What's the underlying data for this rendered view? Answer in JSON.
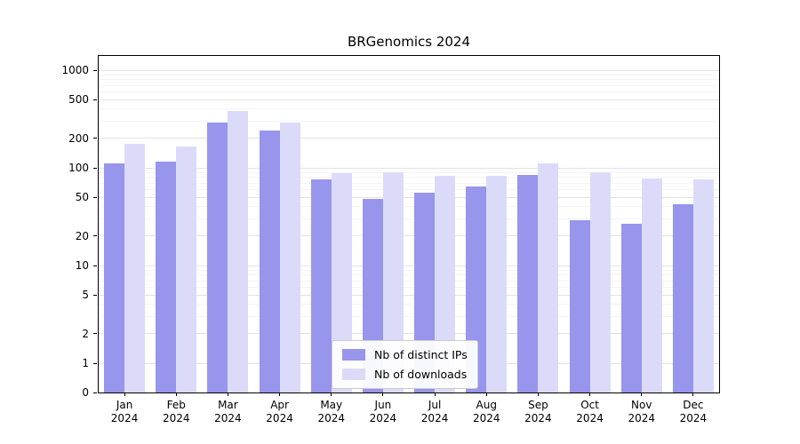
{
  "chart_data": {
    "type": "bar",
    "title": "BRGenomics 2024",
    "categories": [
      "Jan",
      "Feb",
      "Mar",
      "Apr",
      "May",
      "Jun",
      "Jul",
      "Aug",
      "Sep",
      "Oct",
      "Nov",
      "Dec"
    ],
    "category_year": "2024",
    "series": [
      {
        "name": "Nb of distinct IPs",
        "color": "#9795ec",
        "values": [
          110,
          115,
          290,
          240,
          76,
          48,
          56,
          65,
          85,
          29,
          27,
          42
        ]
      },
      {
        "name": "Nb of downloads",
        "color": "#dbdbf9",
        "values": [
          175,
          165,
          380,
          290,
          89,
          90,
          83,
          82,
          112,
          90,
          78,
          76
        ]
      }
    ],
    "yscale": "symlog",
    "xlabel": "",
    "ylabel": "",
    "yticks": [
      0,
      1,
      2,
      5,
      10,
      20,
      50,
      100,
      200,
      500,
      1000
    ],
    "minor_yticks": [
      3,
      4,
      6,
      7,
      8,
      9,
      30,
      40,
      60,
      70,
      80,
      90,
      300,
      400,
      600,
      700,
      800,
      900
    ],
    "ylim": [
      0,
      1400
    ],
    "grid": true,
    "legend": {
      "position": "lower center",
      "entries": [
        "Nb of distinct IPs",
        "Nb of downloads"
      ]
    }
  },
  "colors": {
    "bar_distinct_ips": "#9795ec",
    "bar_downloads": "#dbdbf9",
    "grid_major": "#e3e3e3",
    "grid_minor": "#f4f4f4",
    "axis": "#000000"
  }
}
